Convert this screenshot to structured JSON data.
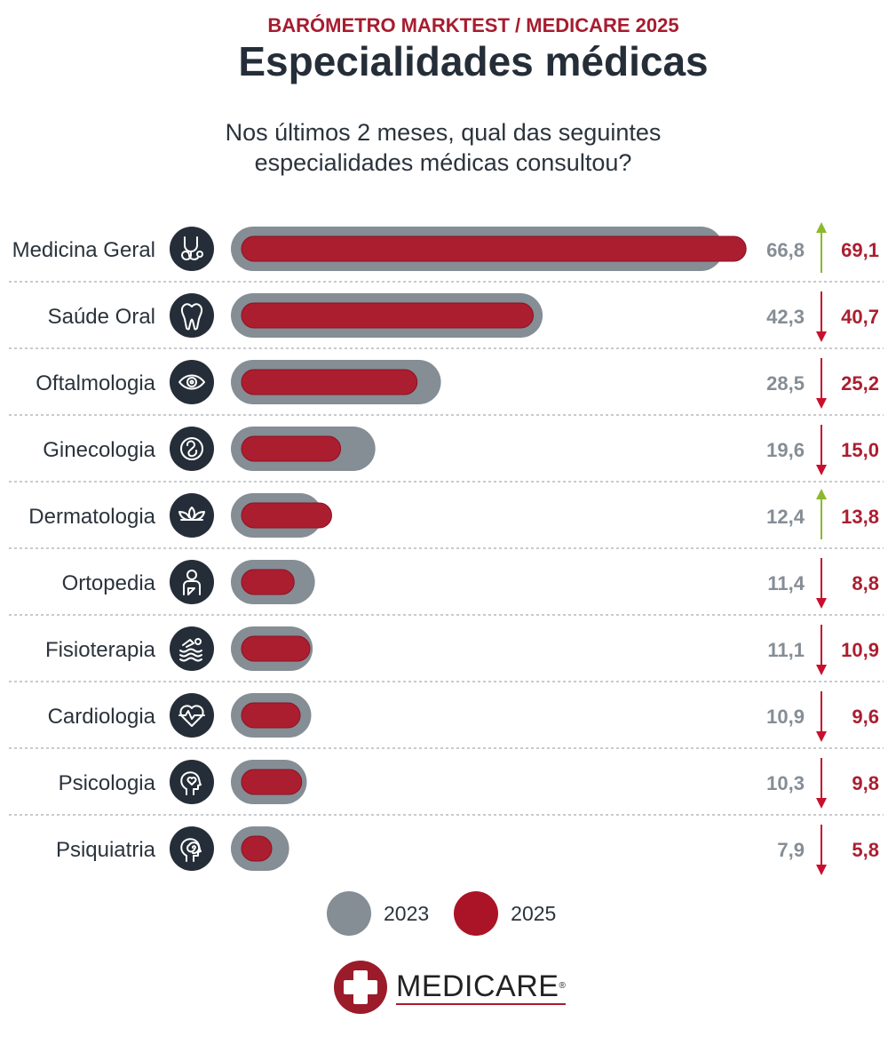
{
  "header": {
    "supertitle": "BARÓMETRO MARKTEST / MEDICARE 2025",
    "title": "Especialidades médicas",
    "question_line1": "Nos últimos 2 meses, qual das seguintes",
    "question_line2": "especialidades médicas consultou?"
  },
  "colors": {
    "s2023": "#858d95",
    "s2025": "#ab1e30",
    "up": "#8cb82b",
    "down": "#c8102e",
    "icon_bg": "#252e38",
    "text": "#2b333c"
  },
  "chart_data": {
    "type": "bar",
    "orientation": "horizontal",
    "categories": [
      "Medicina Geral",
      "Saúde Oral",
      "Oftalmologia",
      "Ginecologia",
      "Dermatologia",
      "Ortopedia",
      "Fisioterapia",
      "Cardiologia",
      "Psicologia",
      "Psiquiatria"
    ],
    "icons": [
      "stethoscope-icon",
      "tooth-icon",
      "eye-icon",
      "fetus-icon",
      "lotus-icon",
      "orthopedic-arm-icon",
      "swimming-icon",
      "heart-pulse-icon",
      "head-heart-icon",
      "head-spiral-icon"
    ],
    "series": [
      {
        "name": "2023",
        "labels": [
          "66,8",
          "42,3",
          "28,5",
          "19,6",
          "12,4",
          "11,4",
          "11,1",
          "10,9",
          "10,3",
          "7,9"
        ],
        "values": [
          66.8,
          42.3,
          28.5,
          19.6,
          12.4,
          11.4,
          11.1,
          10.9,
          10.3,
          7.9
        ]
      },
      {
        "name": "2025",
        "labels": [
          "69,1",
          "40,7",
          "25,2",
          "15,0",
          "13,8",
          "8,8",
          "10,9",
          "9,6",
          "9,8",
          "5,8"
        ],
        "values": [
          69.1,
          40.7,
          25.2,
          15.0,
          13.8,
          8.8,
          10.9,
          9.6,
          9.8,
          5.8
        ]
      }
    ],
    "trend": [
      "up",
      "down",
      "down",
      "down",
      "up",
      "down",
      "down",
      "down",
      "down",
      "down"
    ],
    "legend_position": "bottom"
  },
  "legend": {
    "label_2023": "2023",
    "label_2025": "2025"
  },
  "logo": {
    "text": "MEDICARE",
    "reg": "®"
  }
}
